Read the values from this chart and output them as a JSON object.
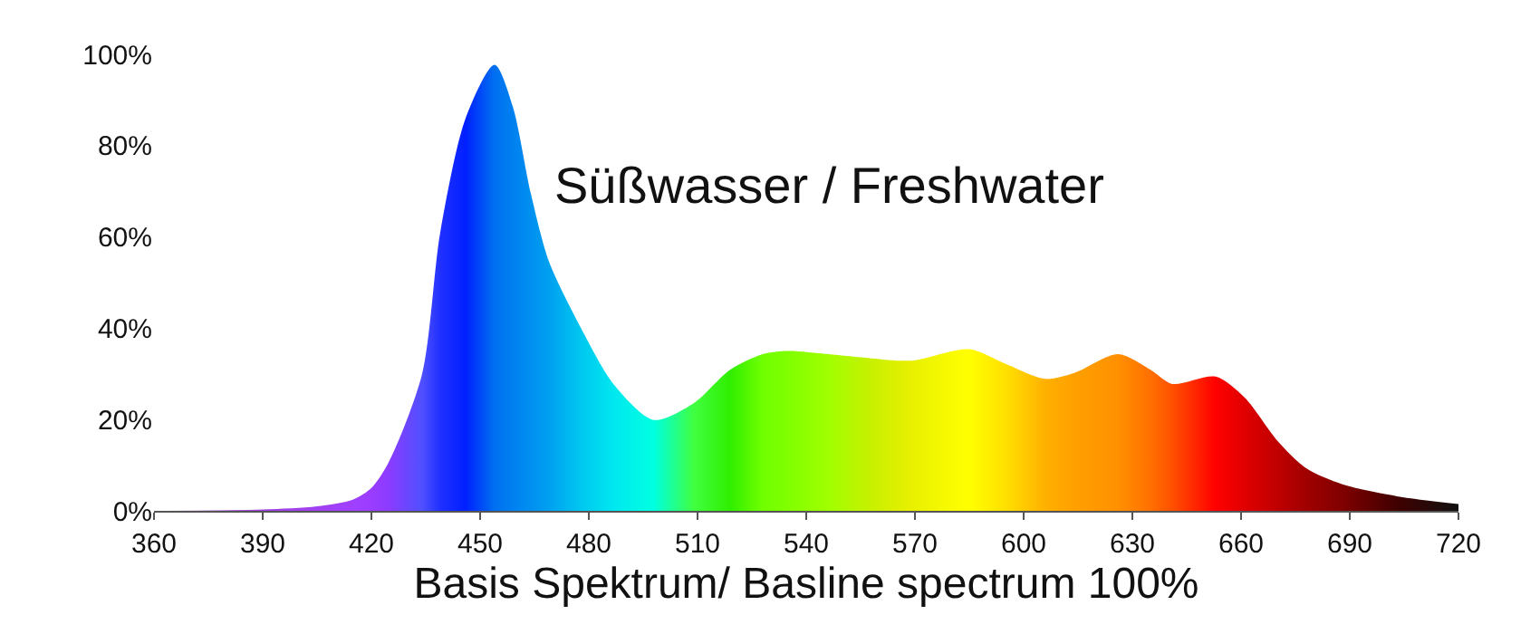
{
  "chart_data": {
    "type": "area",
    "x": [
      360,
      390,
      405,
      415,
      420,
      425,
      434,
      439,
      446,
      454,
      459,
      464,
      469,
      478,
      487,
      498,
      509,
      519,
      528,
      535,
      546,
      558,
      569,
      585,
      595,
      606,
      614,
      626,
      635,
      641,
      653,
      661,
      670,
      678,
      688,
      703,
      720
    ],
    "values": [
      0,
      0.3,
      1,
      2.5,
      5,
      11,
      30,
      61,
      86,
      97.7,
      88.6,
      69.5,
      54.6,
      39.8,
      27.6,
      19.9,
      23.6,
      30.9,
      34.3,
      35,
      34.3,
      33.4,
      32.9,
      35.4,
      32.2,
      28.9,
      30.2,
      34.3,
      30.9,
      27.8,
      29.4,
      24.8,
      15.4,
      9.3,
      5.8,
      3.2,
      1.5
    ],
    "colors": [
      "#9b59b6",
      "#a040e0",
      "#a040f0",
      "#a040ff",
      "#9a3cff",
      "#8a3cff",
      "#5050ff",
      "#2030ff",
      "#0020ff",
      "#0070f0",
      "#0080f0",
      "#0090f0",
      "#00a0f0",
      "#00c8f0",
      "#00e8f0",
      "#00ffe0",
      "#40ff40",
      "#30ee00",
      "#70ff00",
      "#80ff00",
      "#a0ff00",
      "#c8f000",
      "#e8f000",
      "#ffff00",
      "#ffe000",
      "#ffb000",
      "#ffa000",
      "#ff9000",
      "#ff7000",
      "#ff5000",
      "#ff0000",
      "#e00000",
      "#c00000",
      "#a00000",
      "#800000",
      "#400000",
      "#101010"
    ],
    "xlim": [
      360,
      720
    ],
    "xticks": [
      360,
      390,
      420,
      450,
      480,
      510,
      540,
      570,
      600,
      630,
      660,
      690,
      720
    ],
    "ylim": [
      0,
      100
    ],
    "yticks": [
      {
        "value": 0,
        "label": "0%"
      },
      {
        "value": 20,
        "label": "20%"
      },
      {
        "value": 40,
        "label": "40%"
      },
      {
        "value": 60,
        "label": "60%"
      },
      {
        "value": 80,
        "label": "80%"
      },
      {
        "value": 100,
        "label": "100%"
      }
    ],
    "xlabel": "Basis Spektrum/ Basline spectrum 100%",
    "annotations": [
      "Süßwasser / Freshwater"
    ],
    "marker": "none"
  }
}
